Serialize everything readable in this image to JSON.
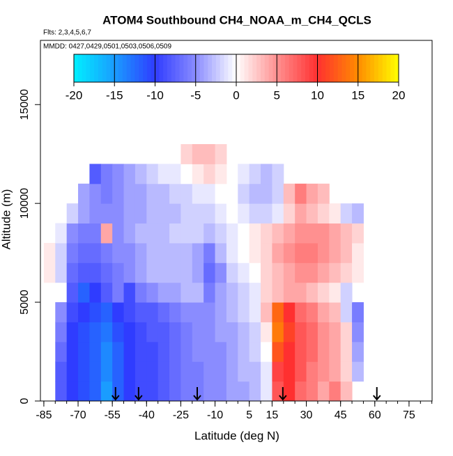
{
  "chart_data": {
    "type": "heatmap",
    "title": "ATOM4 Southbound CH4_NOAA_m_CH4_QCLS",
    "subtitle": "Flts: 2,3,4,5,6,7",
    "annotation": "MMDD: 0427,0429,0501,0503,0506,0509",
    "xlabel": "Latitude (deg N)",
    "ylabel": "Altitude (m)",
    "xlim": [
      -86.5,
      85.1
    ],
    "ylim": [
      0,
      18250
    ],
    "xticks": [
      -85,
      -70,
      -55,
      -40,
      -25,
      -10,
      5,
      15,
      30,
      45,
      60,
      75
    ],
    "xminorticks": [
      -85,
      -80,
      -75,
      -70,
      -65,
      -60,
      -55,
      -50,
      -45,
      -40,
      -35,
      -30,
      -25,
      -20,
      -15,
      -10,
      -5,
      0,
      5,
      10,
      15,
      20,
      25,
      30,
      35,
      40,
      45,
      50,
      55,
      60,
      65,
      70,
      75,
      80,
      85
    ],
    "yticks": [
      0,
      5000,
      10000,
      15000
    ],
    "clim": [
      -20,
      20
    ],
    "cticks": [
      -20,
      -15,
      -10,
      -5,
      0,
      5,
      10,
      15,
      20
    ],
    "colorscale": [
      {
        "value": -20,
        "color": "#00f0ff"
      },
      {
        "value": -15,
        "color": "#1a9cff"
      },
      {
        "value": -10,
        "color": "#2f3cff"
      },
      {
        "value": -5,
        "color": "#8a8cff"
      },
      {
        "value": 0,
        "color": "#ffffff"
      },
      {
        "value": 5,
        "color": "#ff9090"
      },
      {
        "value": 10,
        "color": "#ff3030"
      },
      {
        "value": 15,
        "color": "#ff8c00"
      },
      {
        "value": 20,
        "color": "#ffff00"
      }
    ],
    "x_edges": [
      -85,
      -80,
      -75,
      -70,
      -65,
      -60,
      -55,
      -50,
      -45,
      -40,
      -35,
      -30,
      -25,
      -20,
      -15,
      -10,
      -5,
      0,
      5,
      10,
      15,
      20,
      25,
      30,
      35,
      40,
      45,
      50,
      55,
      60
    ],
    "y_edges": [
      0,
      1000,
      2000,
      3000,
      4000,
      5000,
      6000,
      7000,
      8000,
      9000,
      10000,
      11000,
      12000,
      13000
    ],
    "z": [
      [
        null,
        -8,
        -10,
        -11,
        -12,
        -15,
        -12,
        -10,
        -9,
        -9,
        -8,
        -7,
        -6,
        -6,
        -5,
        -5,
        -4,
        -4,
        -3,
        -1,
        8,
        10,
        7,
        6,
        4,
        6,
        3,
        null,
        null
      ],
      [
        null,
        -8,
        -10,
        -11,
        -12,
        -14,
        -12,
        -10,
        -9,
        -9,
        -8,
        -7,
        -6,
        -6,
        -5,
        -5,
        -4,
        -3,
        -3,
        -1,
        9,
        10,
        8,
        6,
        5,
        4,
        2,
        -3,
        null
      ],
      [
        null,
        -7,
        -10,
        -11,
        -12,
        -14,
        -12,
        -10,
        -9,
        -9,
        -8,
        -7,
        -6,
        -5,
        -5,
        -5,
        -4,
        -3,
        -2,
        0,
        12,
        10,
        8,
        7,
        5,
        4,
        2,
        -4,
        null
      ],
      [
        null,
        -6,
        -10,
        -11,
        -12,
        -13,
        -11,
        -10,
        -9,
        -8,
        -8,
        -7,
        -6,
        -5,
        -5,
        -4,
        -4,
        -3,
        -2,
        1,
        14,
        11,
        8,
        7,
        5,
        4,
        2,
        -5,
        null
      ],
      [
        null,
        -5,
        -9,
        -10,
        -11,
        -12,
        -10,
        -9,
        -8,
        -8,
        -7,
        -6,
        -5,
        -5,
        -5,
        -4,
        -3,
        -2,
        -1,
        3,
        13,
        10,
        7,
        6,
        4,
        3,
        -2,
        -6,
        null
      ],
      [
        null,
        null,
        -8,
        -12,
        -10,
        -8,
        -6,
        -9,
        -6,
        -5,
        -4,
        -4,
        -3,
        -3,
        -6,
        -4,
        -3,
        -2,
        -1,
        2,
        3,
        4,
        4,
        3,
        2,
        1,
        -2,
        null,
        null
      ],
      [
        1,
        -2,
        -7,
        -8,
        -8,
        -7,
        -6,
        -5,
        -4,
        -3,
        -3,
        -3,
        -3,
        -4,
        -7,
        -5,
        -2,
        -1,
        0,
        2,
        3,
        4,
        5,
        5,
        4,
        3,
        2,
        1,
        null
      ],
      [
        1,
        -2,
        -6,
        -7,
        -7,
        -6,
        -5,
        -5,
        -4,
        -3,
        -3,
        -3,
        -3,
        -4,
        -6,
        -3,
        -1,
        0,
        1,
        2,
        4,
        5,
        6,
        6,
        5,
        4,
        3,
        1,
        null
      ],
      [
        null,
        -1,
        -5,
        -6,
        -6,
        4,
        -5,
        -4,
        -3,
        -3,
        -3,
        -2,
        -2,
        -2,
        -3,
        -2,
        -1,
        0,
        1,
        2,
        3,
        4,
        5,
        5,
        5,
        4,
        3,
        2,
        null
      ],
      [
        null,
        null,
        -2,
        -4,
        -5,
        -5,
        -5,
        -4,
        -4,
        -3,
        -3,
        -3,
        -2,
        -2,
        -2,
        -1,
        0,
        -1,
        -2,
        -2,
        -1,
        2,
        4,
        3,
        2,
        1,
        -2,
        -3,
        null
      ],
      [
        null,
        null,
        null,
        -4,
        -5,
        -6,
        -5,
        -4,
        -4,
        -3,
        -3,
        -2,
        -2,
        -1,
        -1,
        0,
        0,
        -2,
        -3,
        -3,
        -2,
        3,
        6,
        4,
        3,
        null,
        null,
        null,
        null
      ],
      [
        null,
        null,
        null,
        null,
        -8,
        -6,
        -5,
        -4,
        -3,
        -2,
        -1,
        -1,
        0,
        1,
        2,
        1,
        null,
        -1,
        -2,
        -3,
        -2,
        null,
        null,
        null,
        null,
        null,
        null,
        null,
        null
      ],
      [
        null,
        null,
        null,
        null,
        null,
        null,
        null,
        null,
        null,
        null,
        null,
        null,
        2,
        3,
        3,
        2,
        null,
        null,
        null,
        null,
        null,
        null,
        null,
        null,
        null,
        null,
        null,
        null,
        null
      ]
    ],
    "markers_lat": [
      -53.6,
      -43.5,
      -17.8,
      19.7,
      60.9
    ]
  }
}
